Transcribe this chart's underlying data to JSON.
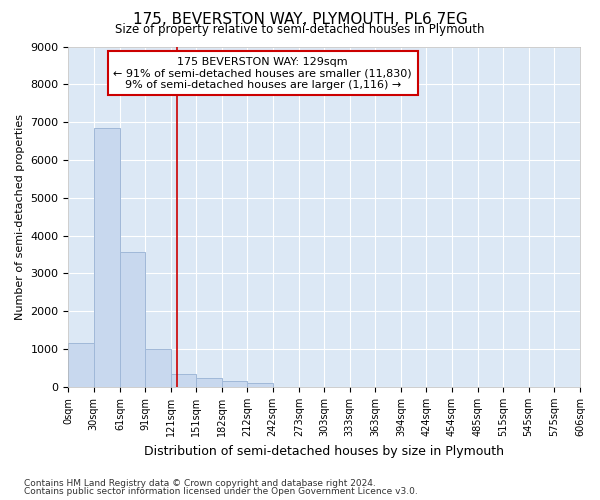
{
  "title": "175, BEVERSTON WAY, PLYMOUTH, PL6 7EG",
  "subtitle": "Size of property relative to semi-detached houses in Plymouth",
  "xlabel": "Distribution of semi-detached houses by size in Plymouth",
  "ylabel": "Number of semi-detached properties",
  "annotation_line1": "175 BEVERSTON WAY: 129sqm",
  "annotation_line2": "← 91% of semi-detached houses are smaller (11,830)",
  "annotation_line3": "9% of semi-detached houses are larger (1,116) →",
  "footer_line1": "Contains HM Land Registry data © Crown copyright and database right 2024.",
  "footer_line2": "Contains public sector information licensed under the Open Government Licence v3.0.",
  "bin_edges": [
    0,
    30,
    61,
    91,
    121,
    151,
    182,
    212,
    242,
    273,
    303,
    333,
    363,
    394,
    424,
    454,
    485,
    515,
    545,
    575,
    606
  ],
  "bin_labels": [
    "0sqm",
    "30sqm",
    "61sqm",
    "91sqm",
    "121sqm",
    "151sqm",
    "182sqm",
    "212sqm",
    "242sqm",
    "273sqm",
    "303sqm",
    "333sqm",
    "363sqm",
    "394sqm",
    "424sqm",
    "454sqm",
    "485sqm",
    "515sqm",
    "545sqm",
    "575sqm",
    "606sqm"
  ],
  "counts": [
    1150,
    6850,
    3575,
    1000,
    350,
    230,
    150,
    100,
    0,
    0,
    0,
    0,
    0,
    0,
    0,
    0,
    0,
    0,
    0,
    0
  ],
  "bar_color": "#c8d8ee",
  "bar_edge_color": "#a0b8d8",
  "vline_color": "#cc0000",
  "vline_x": 129,
  "annotation_box_color": "#cc0000",
  "bg_color": "#dce8f5",
  "grid_color": "#ffffff",
  "fig_bg": "#ffffff",
  "ylim": [
    0,
    9000
  ],
  "yticks": [
    0,
    1000,
    2000,
    3000,
    4000,
    5000,
    6000,
    7000,
    8000,
    9000
  ]
}
